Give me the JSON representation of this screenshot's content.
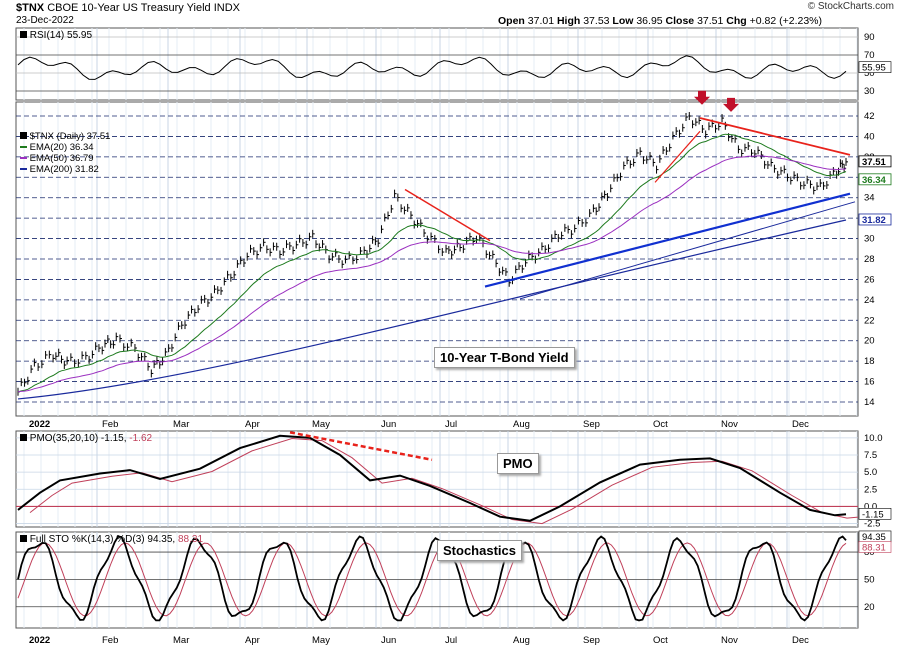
{
  "header": {
    "symbol": "$TNX",
    "name": "CBOE 10-Year US Treasury Yield INDX",
    "date": "23-Dec-2022",
    "open_label": "Open",
    "open": "37.01",
    "high_label": "High",
    "high": "37.53",
    "low_label": "Low",
    "low": "36.95",
    "close_label": "Close",
    "close": "37.51",
    "chg_label": "Chg",
    "chg": "+0.82 (+2.23%)",
    "logo": "© StockCharts.com"
  },
  "colors": {
    "price": "#000000",
    "ema20": "#1e7b1e",
    "ema50": "#9b30c0",
    "ema200": "#1a2a9c",
    "trend_red": "#e8221b",
    "trend_blue": "#1030d0",
    "arrow": "#c0102a",
    "pmo_signal": "#c0405a",
    "grid": "#c8d6e6"
  },
  "rsi_panel": {
    "label": "RSI(14) 55.95",
    "ticks": [
      "90",
      "70",
      "50",
      "30"
    ],
    "last_label": "55.95"
  },
  "price_panel": {
    "legend": [
      "$TNX (Daily) 37.51",
      "EMA(20) 36.34",
      "EMA(50) 36.79",
      "EMA(200) 31.82"
    ],
    "ticks": [
      "42",
      "40",
      "38",
      "36",
      "34",
      "32",
      "30",
      "28",
      "26",
      "24",
      "22",
      "20",
      "18",
      "16",
      "14"
    ],
    "last_labels": [
      "37.51",
      "36.34",
      "31.82"
    ],
    "callout": "10-Year T-Bond Yield"
  },
  "pmo_panel": {
    "label_main": "PMO(35,20,10) -1.15,",
    "label_signal": "-1.62",
    "ticks": [
      "10.0",
      "7.5",
      "5.0",
      "2.5",
      "0.0",
      "-2.5"
    ],
    "last_label": "-1.15",
    "callout": "PMO"
  },
  "sto_panel": {
    "label_main": "Full STO %K(14,3) %D(3) 94.35,",
    "label_signal": "88.31",
    "ticks": [
      "80",
      "50",
      "20"
    ],
    "last_labels": [
      "94.35",
      "88.31"
    ],
    "callout": "Stochastics"
  },
  "x_axis": [
    "2022",
    "Feb",
    "Mar",
    "Apr",
    "May",
    "Jun",
    "Jul",
    "Aug",
    "Sep",
    "Oct",
    "Nov",
    "Dec"
  ],
  "chart_data": {
    "type": "line",
    "x_axis_months": [
      "2022",
      "Feb",
      "Mar",
      "Apr",
      "May",
      "Jun",
      "Jul",
      "Aug",
      "Sep",
      "Oct",
      "Nov",
      "Dec"
    ],
    "price": {
      "series_name": "$TNX (Daily) 37.51",
      "x": [
        "2022-01-03",
        "2022-01-10",
        "2022-01-18",
        "2022-01-24",
        "2022-02-01",
        "2022-02-08",
        "2022-02-14",
        "2022-02-22",
        "2022-03-01",
        "2022-03-07",
        "2022-03-14",
        "2022-03-21",
        "2022-03-28",
        "2022-04-04",
        "2022-04-11",
        "2022-04-18",
        "2022-04-25",
        "2022-05-02",
        "2022-05-09",
        "2022-05-16",
        "2022-05-23",
        "2022-05-31",
        "2022-06-06",
        "2022-06-13",
        "2022-06-20",
        "2022-06-27",
        "2022-07-05",
        "2022-07-11",
        "2022-07-18",
        "2022-07-25",
        "2022-08-01",
        "2022-08-08",
        "2022-08-15",
        "2022-08-22",
        "2022-08-29",
        "2022-09-06",
        "2022-09-12",
        "2022-09-19",
        "2022-09-26",
        "2022-10-03",
        "2022-10-10",
        "2022-10-17",
        "2022-10-24",
        "2022-10-31",
        "2022-11-07",
        "2022-11-14",
        "2022-11-21",
        "2022-11-28",
        "2022-12-05",
        "2022-12-12",
        "2022-12-19",
        "2022-12-23"
      ],
      "y": [
        15.0,
        17.5,
        18.7,
        17.9,
        18.3,
        19.5,
        20.1,
        19.2,
        17.2,
        18.5,
        21.6,
        23.4,
        24.6,
        26.4,
        28.4,
        29.2,
        28.8,
        29.4,
        30.1,
        28.4,
        27.8,
        28.6,
        30.0,
        34.1,
        32.2,
        30.3,
        28.6,
        29.2,
        30.2,
        28.0,
        25.9,
        27.8,
        28.8,
        30.4,
        31.0,
        32.6,
        34.5,
        37.0,
        38.3,
        37.2,
        39.8,
        41.9,
        40.6,
        41.4,
        38.8,
        38.6,
        37.0,
        36.2,
        35.4,
        35.0,
        36.6,
        37.51
      ],
      "ylim": [
        13,
        43
      ]
    },
    "ema20_last": 36.34,
    "ema50_last": 36.79,
    "ema200_last": 31.82,
    "rsi": {
      "last": 55.95,
      "ylim": [
        20,
        100
      ],
      "reference_lines": [
        70,
        30
      ]
    },
    "pmo": {
      "last": -1.15,
      "signal_last": -1.62,
      "ylim": [
        -3,
        11
      ]
    },
    "full_sto": {
      "k_last": 94.35,
      "d_last": 88.31,
      "ylim": [
        0,
        100
      ],
      "reference_lines": [
        80,
        50,
        20
      ]
    },
    "annotations": [
      "10-Year T-Bond Yield",
      "PMO",
      "Stochastics"
    ]
  }
}
